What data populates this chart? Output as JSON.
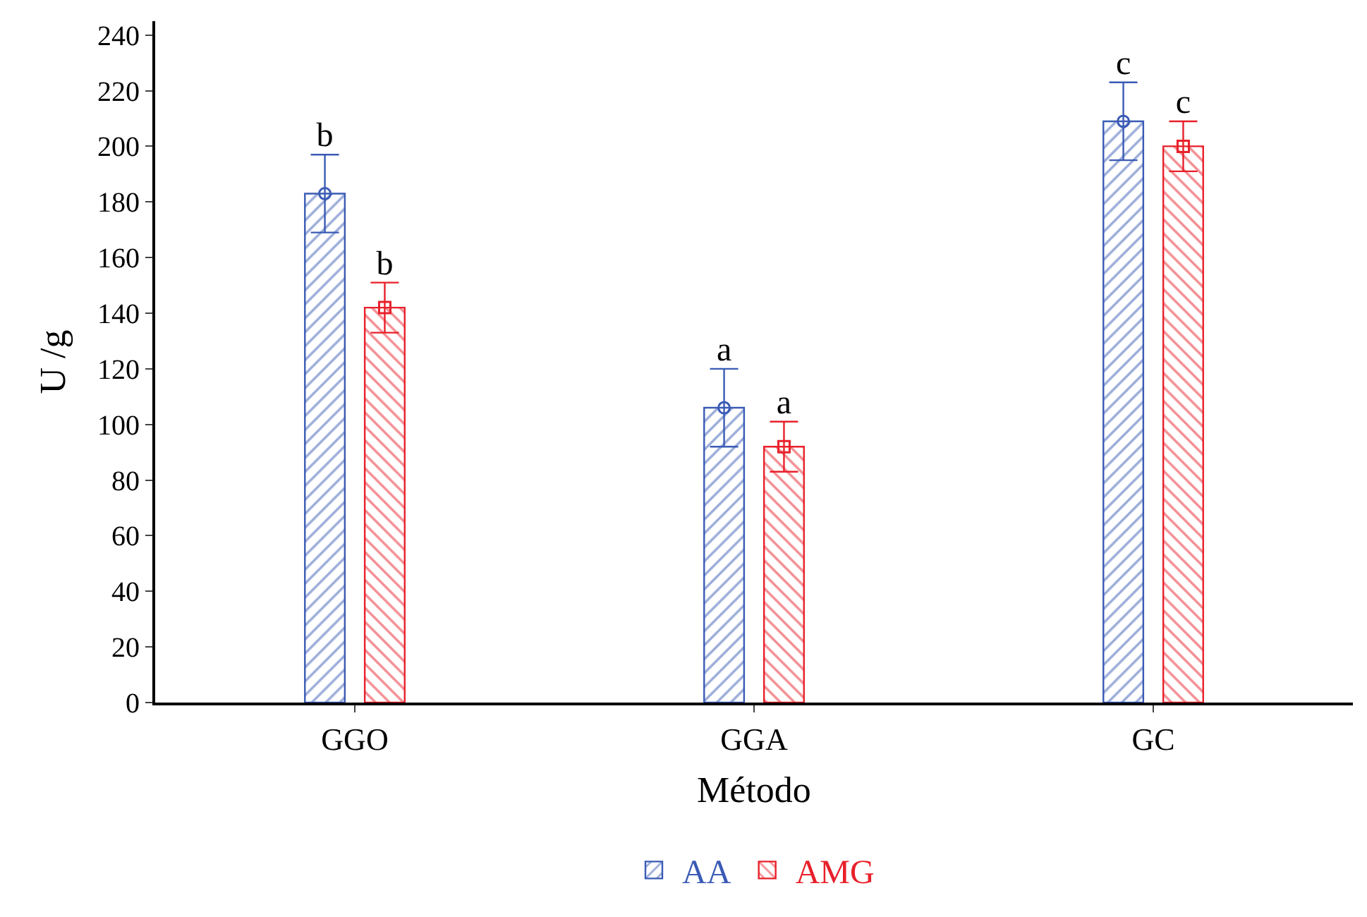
{
  "chart_data": {
    "type": "bar",
    "xlabel": "Método",
    "ylabel": "U /g",
    "categories": [
      "GGO",
      "GGA",
      "GC"
    ],
    "series": [
      {
        "name": "AA",
        "color": "#3a5bb5",
        "values": [
          183,
          106,
          209
        ],
        "errors": [
          14,
          14,
          14
        ],
        "marker": "circle",
        "value_labels": [
          "b",
          "a",
          "c"
        ]
      },
      {
        "name": "AMG",
        "color": "#e8202a",
        "values": [
          142,
          92,
          200
        ],
        "errors": [
          9,
          9,
          9
        ],
        "marker": "square",
        "value_labels": [
          "b",
          "a",
          "c"
        ]
      }
    ],
    "ylim": [
      0,
      245
    ],
    "yticks": [
      0,
      20,
      40,
      60,
      80,
      100,
      120,
      140,
      160,
      180,
      200,
      220,
      240
    ],
    "legend": "bottom"
  }
}
